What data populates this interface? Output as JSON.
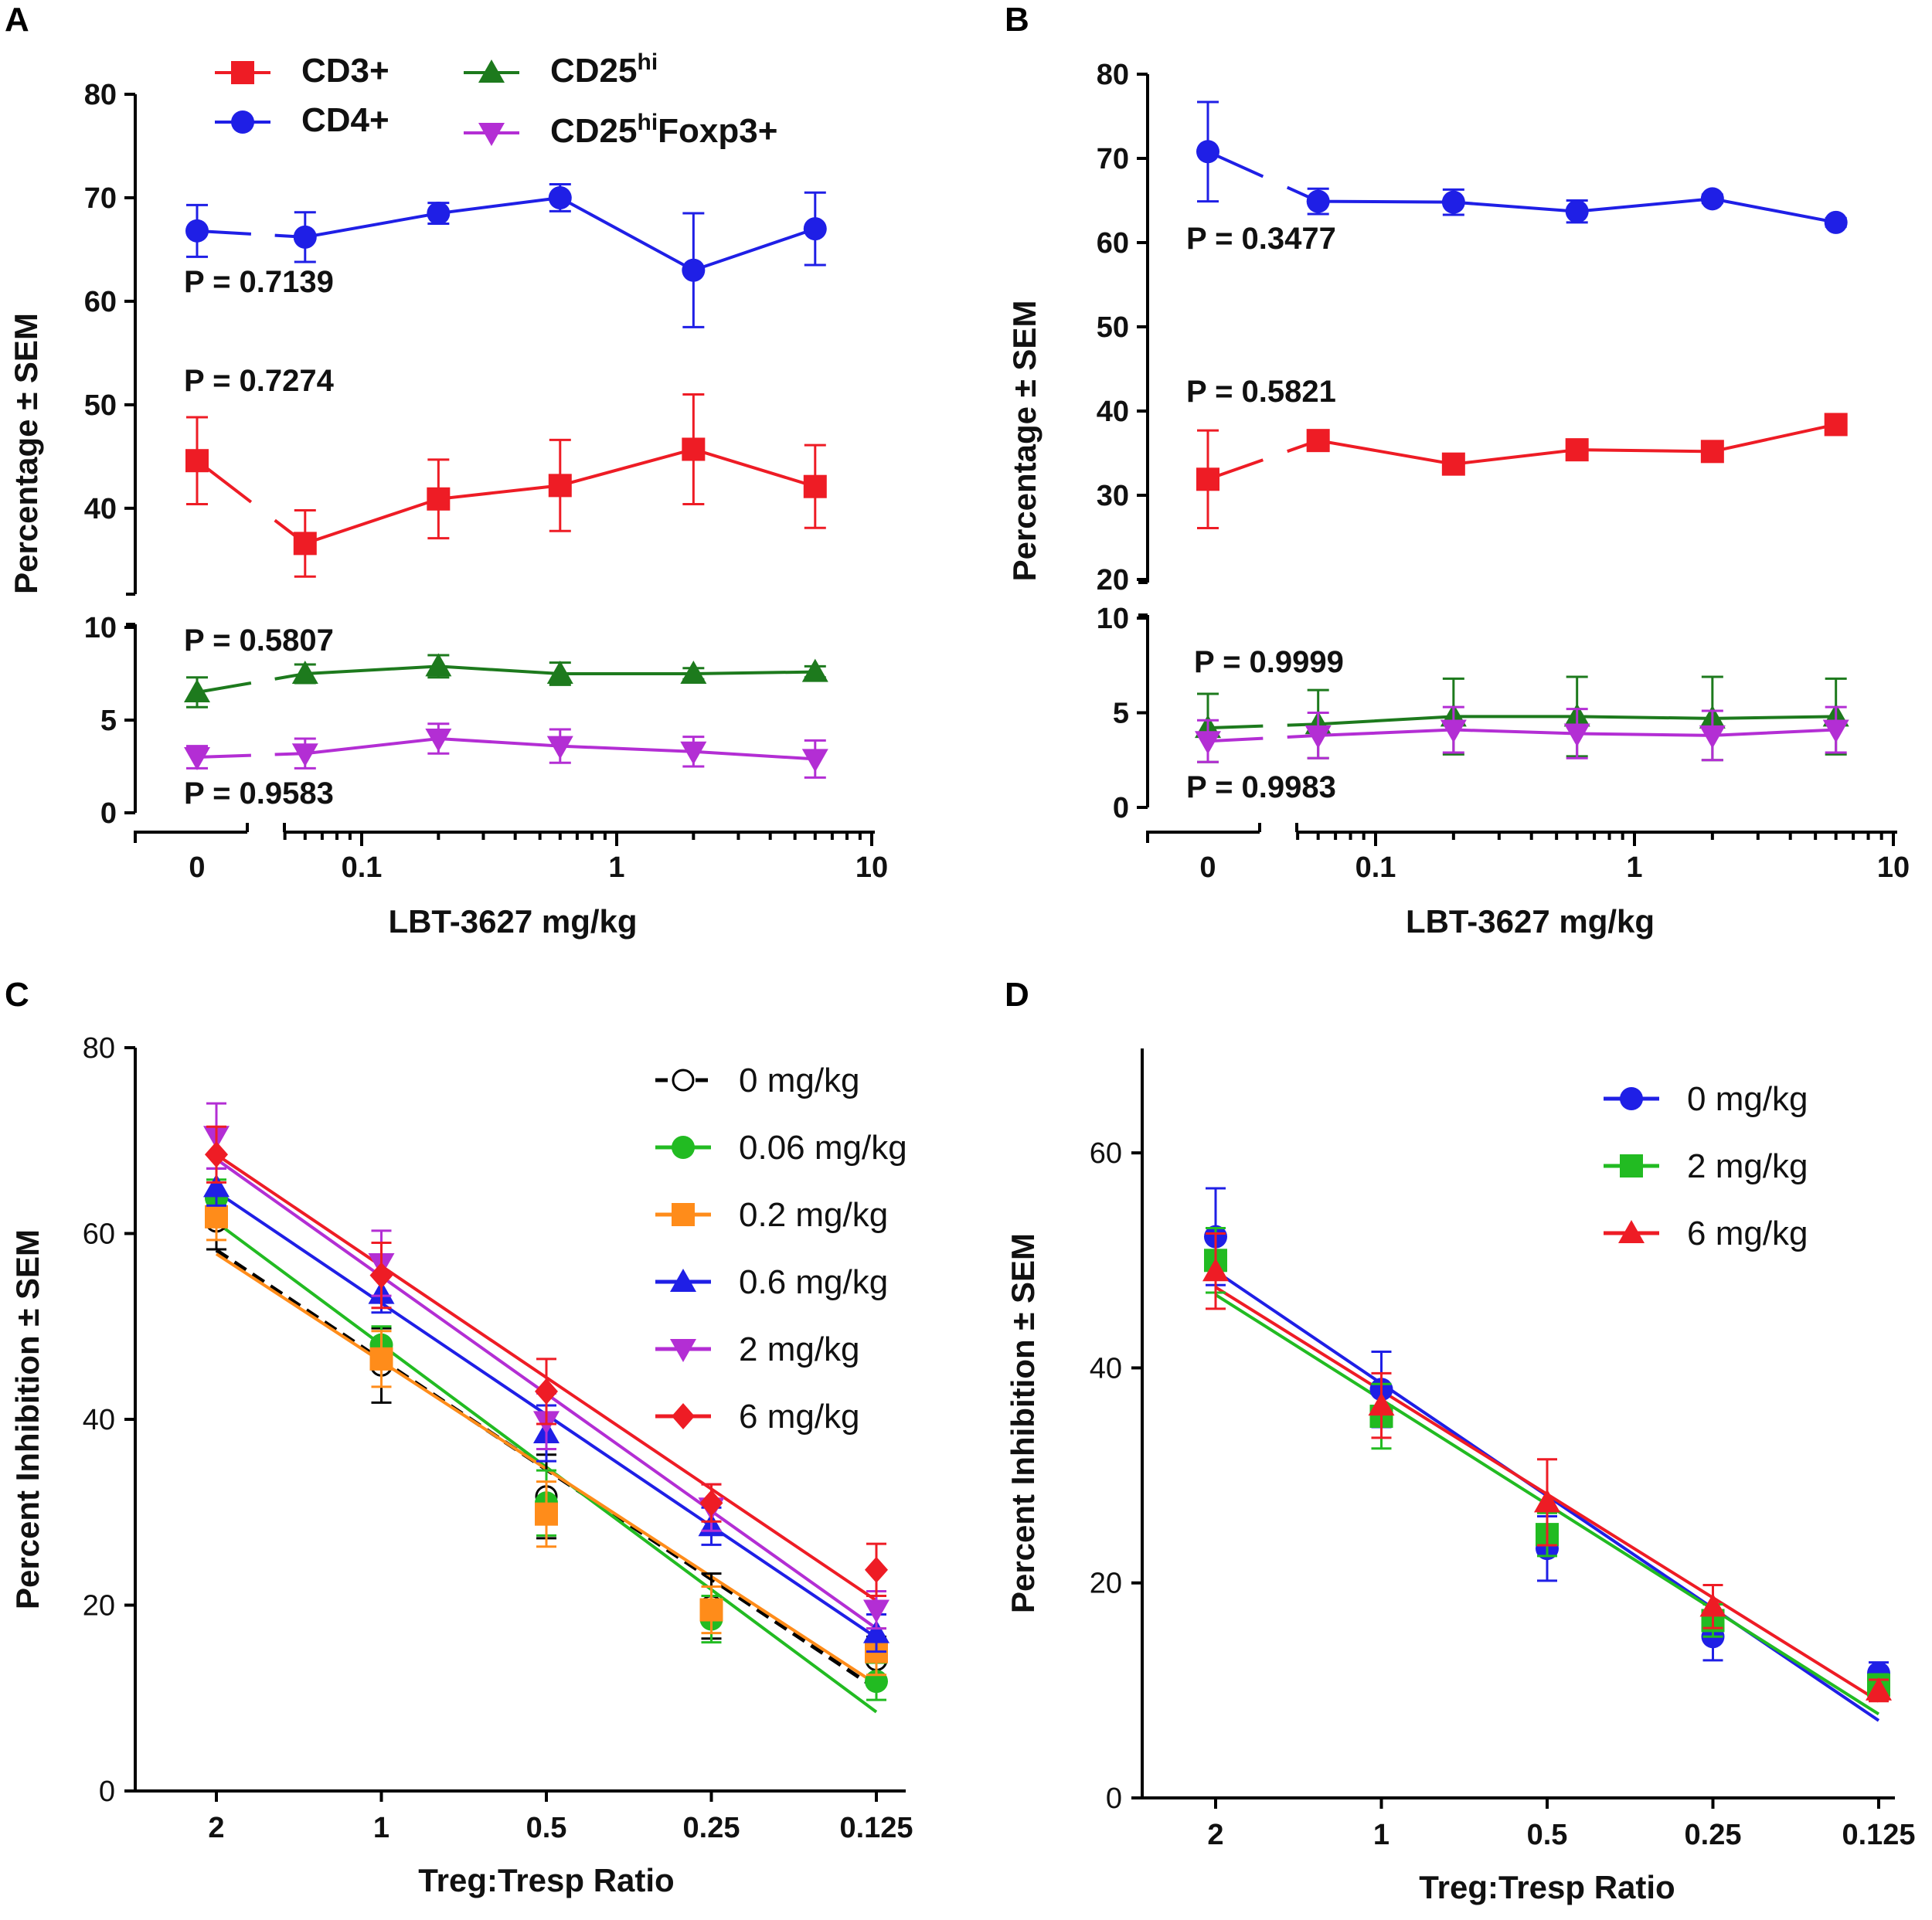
{
  "chart_data": [
    {
      "panel": "A",
      "type": "line",
      "xlabel": "LBT-3627 mg/kg",
      "ylabel": "Percentage ± SEM",
      "x_scale": "log with break at 0",
      "x": [
        0,
        0.06,
        0.2,
        0.6,
        2,
        6
      ],
      "x_ticks": [
        "0",
        "0.1",
        "1",
        "10"
      ],
      "y_ticks_upper": [
        "40",
        "50",
        "60",
        "70",
        "80"
      ],
      "y_ticks_lower": [
        "0",
        "5",
        "10"
      ],
      "legend": [
        {
          "name": "CD3+",
          "base": "CD3+",
          "sup": "",
          "tail": "",
          "color": "#ee1c25",
          "marker": "square"
        },
        {
          "name": "CD4+",
          "base": "CD4+",
          "sup": "",
          "tail": "",
          "color": "#1f1fe6",
          "marker": "circle"
        },
        {
          "name": "CD25hi",
          "base": "CD25",
          "sup": "hi",
          "tail": "",
          "color": "#1d7a1d",
          "marker": "triangle-up"
        },
        {
          "name": "CD25hiFoxp3+",
          "base": "CD25",
          "sup": "hi",
          "tail": "Foxp3+",
          "color": "#b32ed4",
          "marker": "triangle-down"
        }
      ],
      "series": [
        {
          "name": "CD4+",
          "values": [
            66.8,
            66.2,
            68.5,
            70.0,
            63.0,
            67.0
          ],
          "sem": [
            2.5,
            2.4,
            1.0,
            1.3,
            5.5,
            3.5
          ],
          "p_value": "P = 0.7139"
        },
        {
          "name": "CD3+",
          "values": [
            44.6,
            36.6,
            40.9,
            42.2,
            45.7,
            42.1
          ],
          "sem": [
            4.2,
            3.2,
            3.8,
            4.4,
            5.3,
            4.0
          ],
          "p_value": "P = 0.7274"
        },
        {
          "name": "CD25hi",
          "values": [
            6.5,
            7.5,
            7.9,
            7.5,
            7.5,
            7.6
          ],
          "sem": [
            0.8,
            0.5,
            0.6,
            0.6,
            0.3,
            0.3
          ],
          "p_value": "P = 0.5807"
        },
        {
          "name": "CD25hiFoxp3+",
          "values": [
            3.0,
            3.2,
            4.0,
            3.6,
            3.3,
            2.9
          ],
          "sem": [
            0.6,
            0.8,
            0.8,
            0.9,
            0.8,
            1.0
          ],
          "p_value": "P = 0.9583"
        }
      ]
    },
    {
      "panel": "B",
      "type": "line",
      "xlabel": "LBT-3627 mg/kg",
      "ylabel": "Percentage ± SEM",
      "x_scale": "log with break at 0",
      "x": [
        0,
        0.06,
        0.2,
        0.6,
        2,
        6
      ],
      "x_ticks": [
        "0",
        "0.1",
        "1",
        "10"
      ],
      "y_ticks_upper": [
        "20",
        "30",
        "40",
        "50",
        "60",
        "70",
        "80"
      ],
      "y_ticks_lower": [
        "0",
        "5",
        "10"
      ],
      "series": [
        {
          "name": "CD4+",
          "values": [
            70.8,
            64.9,
            64.8,
            63.7,
            65.2,
            62.4
          ],
          "sem": [
            5.9,
            1.5,
            1.5,
            1.3,
            0.5,
            0.5
          ],
          "p_value": "P = 0.3477"
        },
        {
          "name": "CD3+",
          "values": [
            31.9,
            36.5,
            33.7,
            35.4,
            35.2,
            38.4
          ],
          "sem": [
            5.8,
            0.6,
            0.8,
            0.6,
            0.6,
            0.6
          ],
          "p_value": "P = 0.5821"
        },
        {
          "name": "CD25hi",
          "values": [
            4.2,
            4.4,
            4.8,
            4.8,
            4.7,
            4.8
          ],
          "sem": [
            1.8,
            1.8,
            2.0,
            2.1,
            2.2,
            2.0
          ],
          "p_value": "P = 0.9999"
        },
        {
          "name": "CD25hiFoxp3+",
          "values": [
            3.5,
            3.8,
            4.1,
            3.9,
            3.8,
            4.1
          ],
          "sem": [
            1.1,
            1.2,
            1.2,
            1.3,
            1.3,
            1.2
          ],
          "p_value": "P = 0.9983"
        }
      ]
    },
    {
      "panel": "C",
      "type": "scatter",
      "xlabel": "Treg:Tresp Ratio",
      "ylabel": "Percent Inhibition ± SEM",
      "categories": [
        "2",
        "1",
        "0.5",
        "0.25",
        "0.125"
      ],
      "ylim": [
        0,
        80
      ],
      "y_ticks": [
        "0",
        "20",
        "40",
        "60",
        "80"
      ],
      "series": [
        {
          "name": "0  mg/kg",
          "color": "#000000",
          "marker": "open-circle",
          "dashed": true,
          "values": [
            61.3,
            45.8,
            31.7,
            19.9,
            14.1
          ],
          "sem": [
            3.0,
            4.0,
            4.5,
            3.5,
            2.5
          ],
          "fit": [
            58.2,
            11.0
          ]
        },
        {
          "name": "0.06 mg/kg",
          "color": "#22bb22",
          "marker": "circle",
          "dashed": false,
          "values": [
            63.8,
            48.0,
            31.0,
            18.5,
            11.8
          ],
          "sem": [
            2.0,
            2.0,
            3.5,
            2.5,
            2.0
          ],
          "fit": [
            61.2,
            8.5
          ]
        },
        {
          "name": "0.2 mg/kg",
          "color": "#ff8c1a",
          "marker": "square",
          "dashed": false,
          "values": [
            61.8,
            46.5,
            29.8,
            19.5,
            15.0
          ],
          "sem": [
            2.5,
            3.0,
            3.5,
            2.5,
            2.5
          ],
          "fit": [
            57.8,
            11.5
          ]
        },
        {
          "name": "0.6 mg/kg",
          "color": "#1f1fe6",
          "marker": "triangle-up",
          "dashed": false,
          "values": [
            65.0,
            53.5,
            38.5,
            28.5,
            17.0
          ],
          "sem": [
            2.0,
            2.0,
            3.0,
            2.0,
            2.0
          ],
          "fit": [
            64.5,
            16.5
          ]
        },
        {
          "name": "2 mg/kg",
          "color": "#b32ed4",
          "marker": "triangle-down",
          "dashed": false,
          "values": [
            70.5,
            56.8,
            39.8,
            30.5,
            19.5
          ],
          "sem": [
            3.5,
            3.5,
            3.0,
            2.5,
            2.0
          ],
          "fit": [
            68.0,
            17.5
          ]
        },
        {
          "name": "6 mg/kg",
          "color": "#ee1c25",
          "marker": "diamond",
          "dashed": false,
          "values": [
            68.5,
            55.5,
            43.0,
            31.0,
            23.8
          ],
          "sem": [
            3.0,
            3.5,
            3.5,
            2.0,
            2.8
          ],
          "fit": [
            68.5,
            20.5
          ]
        }
      ]
    },
    {
      "panel": "D",
      "type": "scatter",
      "xlabel": "Treg:Tresp Ratio",
      "ylabel": "Percent Inhibition ± SEM",
      "categories": [
        "2",
        "1",
        "0.5",
        "0.25",
        "0.125"
      ],
      "ylim": [
        0,
        70
      ],
      "y_ticks": [
        "0",
        "20",
        "40",
        "60"
      ],
      "series": [
        {
          "name": "0 mg/kg",
          "color": "#1f1fe6",
          "marker": "circle",
          "values": [
            52.2,
            38.0,
            23.2,
            15.0,
            11.6
          ],
          "sem": [
            4.5,
            3.5,
            3.0,
            2.2,
            1.0
          ],
          "fit": [
            49.0,
            7.2
          ]
        },
        {
          "name": "2 mg/kg",
          "color": "#22bb22",
          "marker": "square",
          "values": [
            50.0,
            35.5,
            24.5,
            16.5,
            10.5
          ],
          "sem": [
            3.0,
            3.0,
            2.0,
            1.5,
            1.0
          ],
          "fit": [
            46.8,
            7.8
          ]
        },
        {
          "name": "6 mg/kg",
          "color": "#ee1c25",
          "marker": "triangle-up",
          "values": [
            49.0,
            36.5,
            27.5,
            17.8,
            10.0
          ],
          "sem": [
            3.5,
            3.0,
            4.0,
            2.0,
            1.0
          ],
          "fit": [
            47.5,
            9.0
          ]
        }
      ]
    }
  ]
}
